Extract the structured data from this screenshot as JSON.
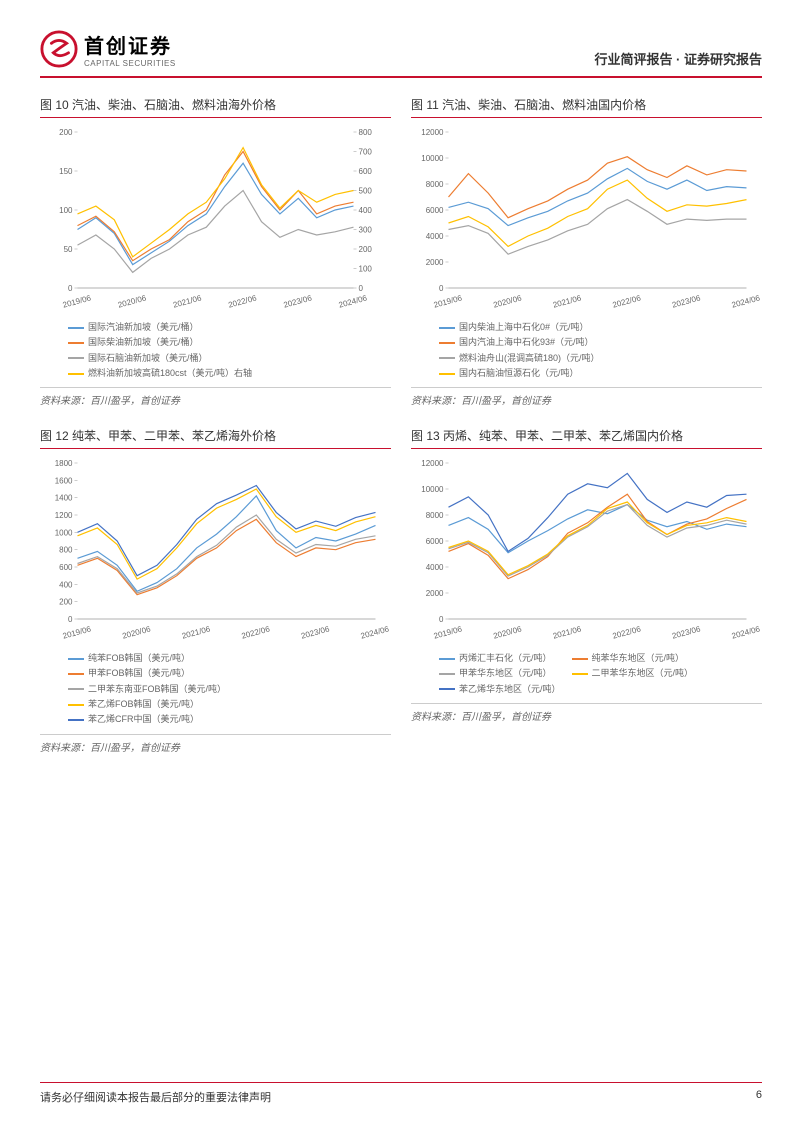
{
  "header": {
    "logo_cn": "首创证券",
    "logo_en": "CAPITAL SECURITIES",
    "title": "行业简评报告 · 证券研究报告"
  },
  "colors": {
    "brand_red": "#c8102e",
    "s_blue": "#5b9bd5",
    "s_orange": "#ed7d31",
    "s_gray": "#a5a5a5",
    "s_yellow": "#ffc000",
    "s_darkblue": "#4472c4"
  },
  "x_labels": [
    "2019/06",
    "2020/06",
    "2021/06",
    "2022/06",
    "2023/06",
    "2024/06"
  ],
  "chart10": {
    "title": "图 10 汽油、柴油、石脑油、燃料油海外价格",
    "y_left": {
      "min": 0,
      "max": 200,
      "step": 50
    },
    "y_right": {
      "min": 0,
      "max": 800,
      "step": 100
    },
    "series": [
      {
        "label": "国际汽油新加坡（美元/桶）",
        "color": "#5b9bd5",
        "axis": "left",
        "values": [
          75,
          90,
          70,
          30,
          45,
          60,
          80,
          95,
          130,
          160,
          120,
          95,
          115,
          90,
          100,
          105
        ]
      },
      {
        "label": "国际柴油新加坡（美元/桶）",
        "color": "#ed7d31",
        "axis": "left",
        "values": [
          80,
          92,
          72,
          35,
          50,
          62,
          85,
          100,
          145,
          175,
          130,
          100,
          125,
          95,
          105,
          110
        ]
      },
      {
        "label": "国际石脑油新加坡（美元/桶）",
        "color": "#a5a5a5",
        "axis": "left",
        "values": [
          55,
          68,
          50,
          20,
          38,
          50,
          68,
          78,
          105,
          125,
          85,
          65,
          75,
          68,
          72,
          78
        ]
      },
      {
        "label": "燃料油新加坡高硫180cst（美元/吨）右轴",
        "color": "#ffc000",
        "axis": "right",
        "values": [
          380,
          420,
          350,
          160,
          230,
          300,
          380,
          440,
          560,
          720,
          530,
          410,
          500,
          440,
          480,
          500
        ]
      }
    ],
    "source": "资料来源：百川盈孚，首创证券"
  },
  "chart11": {
    "title": "图 11 汽油、柴油、石脑油、燃料油国内价格",
    "y_left": {
      "min": 0,
      "max": 12000,
      "step": 2000
    },
    "series": [
      {
        "label": "国内柴油上海中石化0#（元/吨）",
        "color": "#5b9bd5",
        "values": [
          6200,
          6600,
          6100,
          4800,
          5400,
          5900,
          6700,
          7300,
          8400,
          9200,
          8200,
          7600,
          8300,
          7500,
          7800,
          7700
        ]
      },
      {
        "label": "国内汽油上海中石化93#（元/吨）",
        "color": "#ed7d31",
        "values": [
          7000,
          8800,
          7300,
          5400,
          6100,
          6700,
          7600,
          8300,
          9600,
          10100,
          9100,
          8500,
          9400,
          8700,
          9100,
          9000
        ]
      },
      {
        "label": "燃料油舟山(混调高硫180)（元/吨）",
        "color": "#a5a5a5",
        "values": [
          4500,
          4800,
          4200,
          2600,
          3200,
          3700,
          4400,
          4900,
          6100,
          6800,
          5900,
          4900,
          5300,
          5200,
          5300,
          5300
        ]
      },
      {
        "label": "国内石脑油恒源石化（元/吨）",
        "color": "#ffc000",
        "values": [
          5000,
          5500,
          4700,
          3200,
          4000,
          4600,
          5500,
          6100,
          7600,
          8300,
          6900,
          5900,
          6400,
          6300,
          6500,
          6800
        ]
      }
    ],
    "source": "资料来源：百川盈孚，首创证券"
  },
  "chart12": {
    "title": "图 12 纯苯、甲苯、二甲苯、苯乙烯海外价格",
    "y_left": {
      "min": 0,
      "max": 1800,
      "step": 200
    },
    "series": [
      {
        "label": "纯苯FOB韩国（美元/吨）",
        "color": "#5b9bd5",
        "values": [
          700,
          780,
          620,
          320,
          420,
          580,
          820,
          980,
          1180,
          1420,
          1020,
          820,
          940,
          900,
          980,
          1080
        ]
      },
      {
        "label": "甲苯FOB韩国（美元/吨）",
        "color": "#ed7d31",
        "values": [
          620,
          700,
          560,
          280,
          360,
          500,
          700,
          820,
          1020,
          1150,
          880,
          720,
          820,
          800,
          880,
          920
        ]
      },
      {
        "label": "二甲苯东南亚FOB韩国（美元/吨）",
        "color": "#a5a5a5",
        "values": [
          640,
          720,
          580,
          300,
          380,
          520,
          720,
          850,
          1060,
          1200,
          920,
          760,
          860,
          840,
          920,
          960
        ]
      },
      {
        "label": "苯乙烯FOB韩国（美元/吨）",
        "color": "#ffc000",
        "values": [
          960,
          1050,
          860,
          460,
          580,
          820,
          1100,
          1280,
          1380,
          1500,
          1180,
          1000,
          1080,
          1020,
          1120,
          1180
        ]
      },
      {
        "label": "苯乙烯CFR中国（美元/吨）",
        "color": "#4472c4",
        "values": [
          1000,
          1100,
          900,
          500,
          620,
          860,
          1150,
          1330,
          1430,
          1540,
          1230,
          1040,
          1130,
          1070,
          1170,
          1230
        ]
      }
    ],
    "source": "资料来源：百川盈孚，首创证券"
  },
  "chart13": {
    "title": "图 13 丙烯、纯苯、甲苯、二甲苯、苯乙烯国内价格",
    "y_left": {
      "min": 0,
      "max": 12000,
      "step": 2000
    },
    "series": [
      {
        "label": "丙烯汇丰石化（元/吨）",
        "color": "#5b9bd5",
        "values": [
          7200,
          7800,
          6900,
          5100,
          6000,
          6800,
          7700,
          8400,
          8100,
          8800,
          7600,
          7100,
          7500,
          6900,
          7300,
          7100
        ]
      },
      {
        "label": "纯苯华东地区（元/吨）",
        "color": "#ed7d31",
        "values": [
          5200,
          5800,
          4900,
          3100,
          3800,
          4800,
          6600,
          7400,
          8600,
          9600,
          7500,
          6500,
          7300,
          7700,
          8500,
          9200
        ]
      },
      {
        "label": "甲苯华东地区（元/吨）",
        "color": "#a5a5a5",
        "values": [
          5400,
          5900,
          5100,
          3300,
          4000,
          4900,
          6300,
          7100,
          8300,
          8800,
          7200,
          6300,
          7000,
          7200,
          7600,
          7300
        ]
      },
      {
        "label": "二甲苯华东地区（元/吨）",
        "color": "#ffc000",
        "values": [
          5500,
          6000,
          5200,
          3400,
          4100,
          5000,
          6400,
          7200,
          8500,
          9000,
          7400,
          6500,
          7200,
          7400,
          7800,
          7500
        ]
      },
      {
        "label": "苯乙烯华东地区（元/吨）",
        "color": "#4472c4",
        "values": [
          8600,
          9400,
          8000,
          5200,
          6200,
          7800,
          9600,
          10400,
          10100,
          11200,
          9200,
          8200,
          9000,
          8600,
          9500,
          9600
        ]
      }
    ],
    "source": "资料来源：百川盈孚，首创证券"
  },
  "footer": {
    "disclaimer": "请务必仔细阅读本报告最后部分的重要法律声明",
    "page": "6"
  }
}
